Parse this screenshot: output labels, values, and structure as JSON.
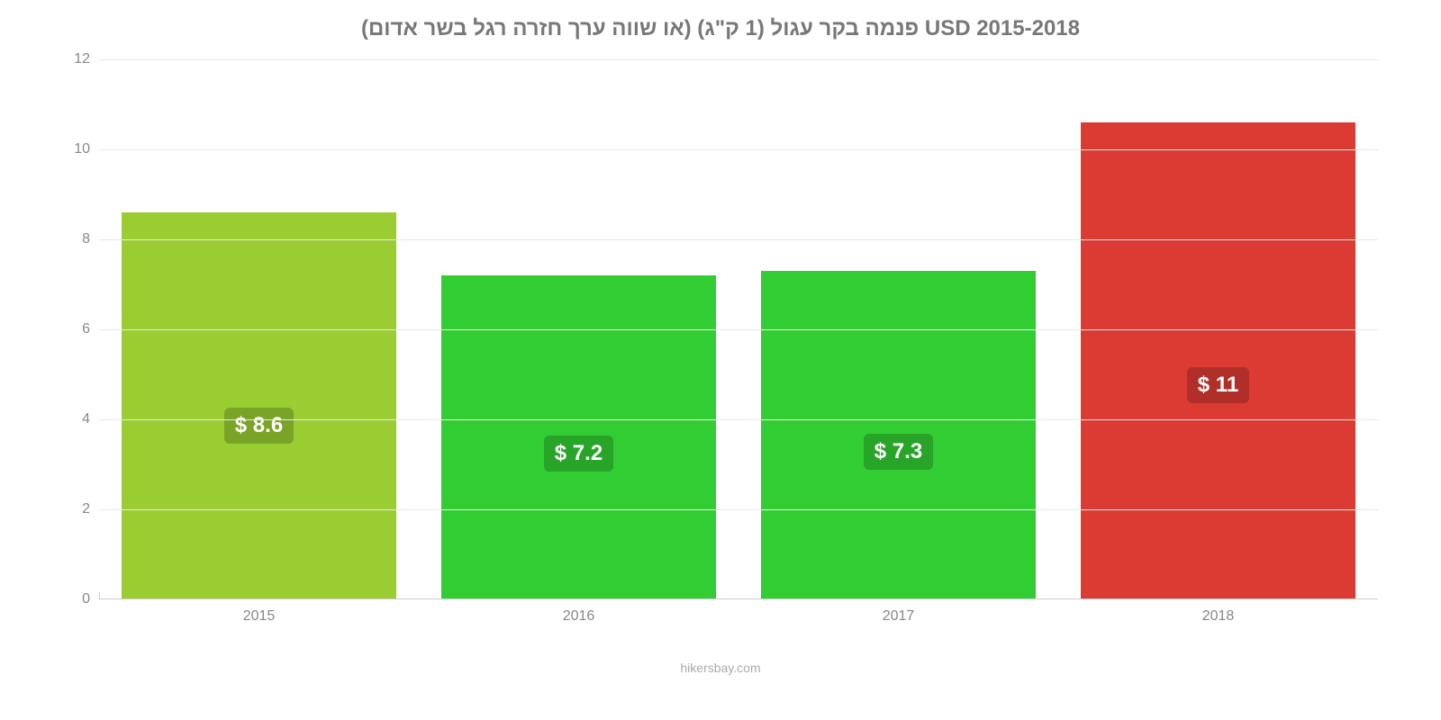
{
  "chart": {
    "type": "bar",
    "title": "פנמה בקר עגול (1 ק\"ג) (או שווה ערך חזרה רגל בשר אדום) USD 2015-2018",
    "title_fontsize": 24,
    "title_color": "#777777",
    "background_color": "#ffffff",
    "grid_color": "#e8e8e8",
    "axis_color": "#cccccc",
    "tick_label_color": "#888888",
    "tick_fontsize": 16,
    "value_label_fontsize": 24,
    "value_label_color": "#ffffff",
    "ylim": [
      0,
      12
    ],
    "yticks": [
      0,
      2,
      4,
      6,
      8,
      10,
      12
    ],
    "bar_width": 0.86,
    "categories": [
      "2015",
      "2016",
      "2017",
      "2018"
    ],
    "values": [
      8.6,
      7.2,
      7.3,
      10.6
    ],
    "value_labels": [
      "$ 8.6",
      "$ 7.2",
      "$ 7.3",
      "$ 11"
    ],
    "bar_colors": [
      "#9acd32",
      "#32cd32",
      "#32cd32",
      "#dc3b33"
    ],
    "label_bg_colors": [
      "#7aa428",
      "#28a428",
      "#28a428",
      "#b02f29"
    ]
  },
  "footer": {
    "text": "hikersbay.com",
    "color": "#aaaaaa",
    "fontsize": 14
  }
}
